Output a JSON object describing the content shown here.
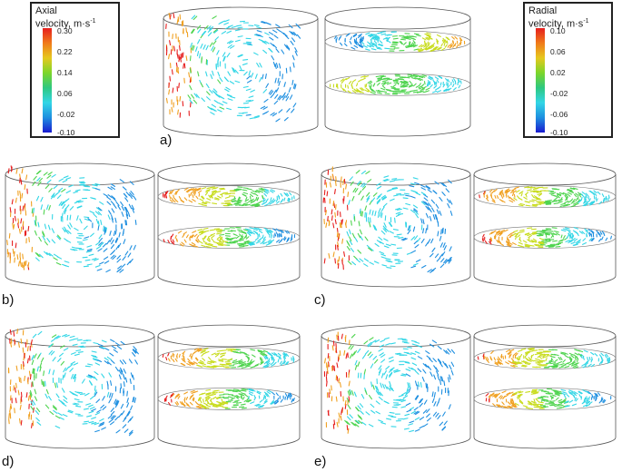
{
  "legends": {
    "axial": {
      "title_line1": "Axial",
      "title_line2": "velocity, m·s",
      "title_sup": "-1",
      "ticks": [
        "0.30",
        "0.22",
        "0.14",
        "0.06",
        "-0.02",
        "-0.10"
      ]
    },
    "radial": {
      "title_line1": "Radial",
      "title_line2": "velocity, m·s",
      "title_sup": "-1",
      "ticks": [
        "0.10",
        "0.06",
        "0.02",
        "-0.02",
        "-0.06",
        "-0.10"
      ]
    }
  },
  "panels": [
    {
      "label": "a)"
    },
    {
      "label": "b)"
    },
    {
      "label": "c)"
    },
    {
      "label": "d)"
    },
    {
      "label": "e)"
    }
  ],
  "colors": {
    "scale": [
      "#1a1ad0",
      "#1e8fe0",
      "#33d6e6",
      "#4fd44f",
      "#c8dc1e",
      "#f0a020",
      "#e61e1e"
    ]
  }
}
